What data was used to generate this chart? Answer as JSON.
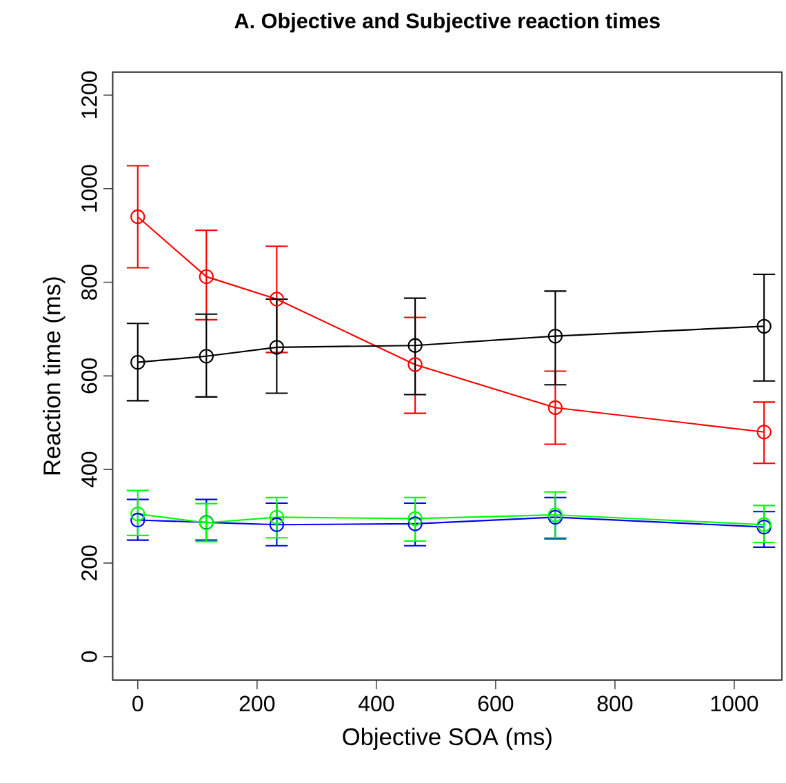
{
  "chart_data": {
    "type": "line",
    "title": "A. Objective and Subjective reaction times",
    "xlabel": "Objective SOA (ms)",
    "ylabel": "Reaction time (ms)",
    "x": [
      0,
      115,
      233,
      465,
      700,
      1050
    ],
    "series": [
      {
        "color": "#ff0000",
        "values": [
          940,
          812,
          764,
          624,
          532,
          480
        ],
        "errors": [
          [
            831,
            1049
          ],
          [
            720,
            911
          ],
          [
            650,
            877
          ],
          [
            520,
            725
          ],
          [
            454,
            610
          ],
          [
            413,
            544
          ]
        ]
      },
      {
        "color": "#000000",
        "values": [
          629,
          642,
          661,
          665,
          685,
          706
        ],
        "errors": [
          [
            547,
            712
          ],
          [
            555,
            732
          ],
          [
            563,
            764
          ],
          [
            560,
            766
          ],
          [
            581,
            781
          ],
          [
            589,
            817
          ]
        ]
      },
      {
        "color": "#0000ff",
        "values": [
          292,
          287,
          282,
          284,
          298,
          277
        ],
        "errors": [
          [
            249,
            336
          ],
          [
            249,
            336
          ],
          [
            237,
            328
          ],
          [
            237,
            328
          ],
          [
            252,
            340
          ],
          [
            234,
            310
          ]
        ]
      },
      {
        "color": "#00ff00",
        "values": [
          305,
          286,
          298,
          295,
          303,
          282
        ],
        "errors": [
          [
            259,
            355
          ],
          [
            246,
            327
          ],
          [
            254,
            340
          ],
          [
            247,
            340
          ],
          [
            254,
            352
          ],
          [
            244,
            323
          ]
        ]
      }
    ],
    "xlim": [
      -42,
      1080
    ],
    "ylim": [
      -50,
      1249
    ],
    "xticks": [
      0,
      200,
      400,
      600,
      800,
      1000
    ],
    "yticks": [
      0,
      200,
      400,
      600,
      800,
      1000,
      1200
    ],
    "marker": "circle",
    "line_style": "solid"
  }
}
